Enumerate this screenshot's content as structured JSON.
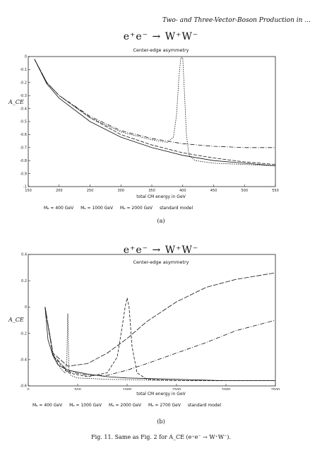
{
  "header": {
    "running_title": "Two- and Three-Vector-Boson Production in ..."
  },
  "figure": {
    "caption": "Fig. 11. Same as Fig. 2 for A_CE (e⁺e⁻ → W⁺W⁻)."
  },
  "chart_data": [
    {
      "type": "line",
      "panel_label": "(a)",
      "title": "e⁺e⁻ → W⁺W⁻",
      "subtitle": "Center-edge asymmetry",
      "xlabel": "total CM energy in GeV",
      "ylabel": "A_CE",
      "xlim": [
        150,
        550
      ],
      "ylim": [
        -1.0,
        0.0
      ],
      "xticks": [
        150,
        200,
        250,
        300,
        350,
        400,
        450,
        500,
        550
      ],
      "xtick_labels": [
        "150",
        "200",
        "250",
        "300",
        "350",
        "400",
        "450",
        "500",
        "550"
      ],
      "yticks": [
        0,
        -0.1,
        -0.2,
        -0.3,
        -0.4,
        -0.5,
        -0.6,
        -0.7,
        -0.8,
        -0.9,
        -1
      ],
      "ytick_labels": [
        "0",
        "-0.1",
        "-0.2",
        "-0.3",
        "-0.4",
        "-0.5",
        "-0.6",
        "-0.7",
        "-0.8",
        "-0.9",
        "-1"
      ],
      "legend": [
        "Mₐ = 400 GeV",
        "Mₐ = 1000 GeV",
        "Mₐ = 2000 GeV",
        "standard model"
      ],
      "legend_placement": "bottom",
      "series": [
        {
          "name": "Mₐ = 400 GeV",
          "dash": "1.5,1.5",
          "x": [
            160,
            180,
            200,
            250,
            300,
            350,
            375,
            385,
            390,
            394,
            397,
            400,
            403,
            406,
            410,
            420,
            450,
            500,
            550
          ],
          "y": [
            -0.02,
            -0.2,
            -0.3,
            -0.47,
            -0.58,
            -0.64,
            -0.66,
            -0.62,
            -0.45,
            -0.15,
            -0.01,
            -0.01,
            -0.3,
            -0.6,
            -0.76,
            -0.8,
            -0.82,
            -0.83,
            -0.84
          ]
        },
        {
          "name": "Mₐ = 1000 GeV",
          "dash": "5,2",
          "x": [
            160,
            180,
            200,
            250,
            300,
            350,
            400,
            450,
            500,
            550
          ],
          "y": [
            -0.02,
            -0.2,
            -0.3,
            -0.47,
            -0.6,
            -0.68,
            -0.74,
            -0.78,
            -0.81,
            -0.83
          ]
        },
        {
          "name": "Mₐ = 2000 GeV",
          "dash": "6,2,1,2",
          "x": [
            160,
            180,
            200,
            250,
            300,
            350,
            400,
            450,
            500,
            550
          ],
          "y": [
            -0.02,
            -0.2,
            -0.3,
            -0.46,
            -0.57,
            -0.63,
            -0.67,
            -0.69,
            -0.7,
            -0.7
          ]
        },
        {
          "name": "standard model",
          "dash": "",
          "x": [
            160,
            180,
            200,
            250,
            300,
            350,
            400,
            450,
            500,
            550
          ],
          "y": [
            -0.02,
            -0.21,
            -0.32,
            -0.5,
            -0.62,
            -0.7,
            -0.76,
            -0.8,
            -0.82,
            -0.84
          ]
        }
      ]
    },
    {
      "type": "line",
      "panel_label": "(b)",
      "title": "e⁺e⁻ → W⁺W⁻",
      "subtitle": "Center-edge asymmetry",
      "xlabel": "total CM energy in GeV",
      "ylabel": "A_CE",
      "xlim": [
        0,
        2500
      ],
      "ylim": [
        -0.6,
        0.4
      ],
      "xticks": [
        0,
        500,
        1000,
        1500,
        2000,
        2500
      ],
      "xtick_labels": [
        "0",
        "500",
        "1000",
        "1500",
        "2000",
        "2500"
      ],
      "yticks": [
        0.4,
        0.2,
        0,
        -0.2,
        -0.4,
        -0.6
      ],
      "ytick_labels": [
        "0.4",
        "0.2",
        "0",
        "-0.2",
        "-0.4",
        "-0.6"
      ],
      "legend": [
        "Mₐ = 400 GeV",
        "Mₐ = 1000 GeV",
        "Mₐ = 2000 GeV",
        "Mₐ = 2700 GeV",
        "standard model"
      ],
      "legend_placement": "bottom",
      "series": [
        {
          "name": "Mₐ = 400 GeV",
          "dash": "1.5,1.5",
          "x": [
            170,
            250,
            330,
            370,
            390,
            398,
            400,
            402,
            410,
            430,
            500,
            800,
            1500,
            2500
          ],
          "y": [
            0.0,
            -0.36,
            -0.47,
            -0.5,
            -0.42,
            -0.1,
            -0.05,
            -0.1,
            -0.47,
            -0.52,
            -0.54,
            -0.55,
            -0.56,
            -0.56
          ]
        },
        {
          "name": "Mₐ = 1000 GeV",
          "dash": "4,2",
          "x": [
            170,
            250,
            400,
            600,
            800,
            900,
            950,
            980,
            1000,
            1020,
            1050,
            1100,
            1200,
            1500,
            2500
          ],
          "y": [
            0.0,
            -0.37,
            -0.5,
            -0.53,
            -0.5,
            -0.38,
            -0.15,
            0.0,
            0.07,
            0.0,
            -0.3,
            -0.5,
            -0.55,
            -0.56,
            -0.56
          ]
        },
        {
          "name": "Mₐ = 2000 GeV",
          "dash": "7,2",
          "x": [
            170,
            250,
            400,
            600,
            800,
            1000,
            1200,
            1500,
            1800,
            2100,
            2500
          ],
          "y": [
            0.0,
            -0.35,
            -0.45,
            -0.43,
            -0.35,
            -0.24,
            -0.11,
            0.04,
            0.15,
            0.21,
            0.26
          ]
        },
        {
          "name": "Mₐ = 2700 GeV",
          "dash": "6,2,1,2",
          "x": [
            170,
            250,
            400,
            600,
            800,
            1000,
            1200,
            1500,
            1800,
            2100,
            2500
          ],
          "y": [
            0.0,
            -0.36,
            -0.49,
            -0.52,
            -0.52,
            -0.48,
            -0.43,
            -0.35,
            -0.27,
            -0.18,
            -0.1
          ]
        },
        {
          "name": "standard model",
          "dash": "",
          "x": [
            170,
            200,
            250,
            300,
            400,
            600,
            800,
            1000,
            1500,
            2000,
            2500
          ],
          "y": [
            0.0,
            -0.25,
            -0.37,
            -0.44,
            -0.48,
            -0.51,
            -0.53,
            -0.54,
            -0.55,
            -0.56,
            -0.56
          ]
        }
      ]
    }
  ]
}
